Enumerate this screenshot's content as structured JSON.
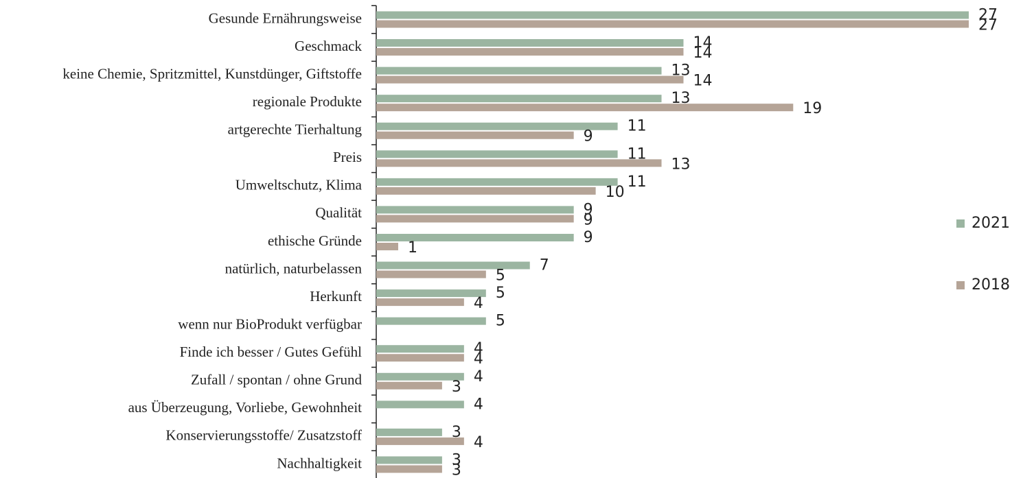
{
  "chart_data": {
    "type": "bar",
    "orientation": "horizontal",
    "categories": [
      "Gesunde Ernährungsweise",
      "Geschmack",
      "keine Chemie, Spritzmittel, Kunstdünger, Giftstoffe",
      "regionale Produkte",
      "artgerechte Tierhaltung",
      "Preis",
      "Umweltschutz, Klima",
      "Qualität",
      "ethische Gründe",
      "natürlich, naturbelassen",
      "Herkunft",
      "wenn nur BioProdukt verfügbar",
      "Finde ich besser / Gutes Gefühl",
      "Zufall / spontan / ohne Grund",
      "aus Überzeugung, Vorliebe, Gewohnheit",
      "Konservierungsstoffe/ Zusatzstoff",
      "Nachhaltigkeit"
    ],
    "series": [
      {
        "name": "2021",
        "color": "#9bb5a1",
        "values": [
          27,
          14,
          13,
          13,
          11,
          11,
          11,
          9,
          9,
          7,
          5,
          5,
          4,
          4,
          4,
          3,
          3
        ]
      },
      {
        "name": "2018",
        "color": "#b5a497",
        "values": [
          27,
          14,
          14,
          19,
          9,
          13,
          10,
          9,
          1,
          5,
          4,
          null,
          4,
          3,
          null,
          4,
          3
        ]
      }
    ],
    "legend": "right"
  }
}
